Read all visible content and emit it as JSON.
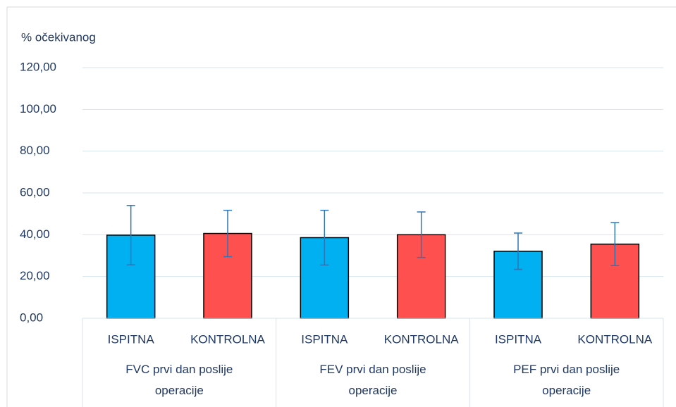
{
  "chart_data": {
    "type": "bar",
    "ylabel": "% očekivanog",
    "categories": [
      "ISPITNA",
      "KONTROLNA",
      "ISPITNA",
      "KONTROLNA",
      "ISPITNA",
      "KONTROLNA"
    ],
    "groups": [
      "FVC prvi dan poslije operacije",
      "FEV prvi dan poslije operacije",
      "PEF prvi dan poslije operacije"
    ],
    "values": [
      39.8,
      40.6,
      38.6,
      40.0,
      32.1,
      35.5
    ],
    "errors": [
      14.2,
      11.1,
      13.1,
      10.9,
      8.7,
      10.3
    ],
    "colors": [
      "#00b0f0",
      "#ff5050",
      "#00b0f0",
      "#ff5050",
      "#00b0f0",
      "#ff5050"
    ],
    "error_color": "#2e75b6",
    "ylim": [
      0,
      120
    ],
    "yticks": [
      {
        "value": 0,
        "label": "0,00"
      },
      {
        "value": 20,
        "label": "20,00"
      },
      {
        "value": 40,
        "label": "40,00"
      },
      {
        "value": 60,
        "label": "60,00"
      },
      {
        "value": 80,
        "label": "80,00"
      },
      {
        "value": 100,
        "label": "100,00"
      },
      {
        "value": 120,
        "label": "120,00"
      }
    ],
    "grid": true
  }
}
